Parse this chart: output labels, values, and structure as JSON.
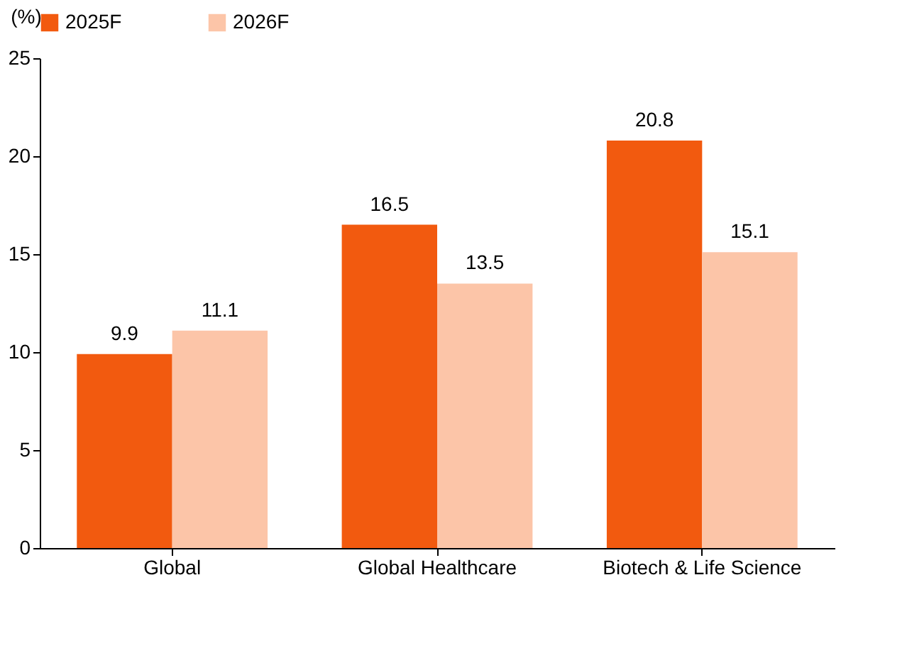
{
  "chart_data": {
    "type": "bar",
    "ylabel": "(%)",
    "categories": [
      "Global",
      "Global  Healthcare",
      "Biotech & Life Science"
    ],
    "series": [
      {
        "name": "2025F",
        "color": "#f25a0f",
        "values": [
          9.9,
          16.5,
          20.8
        ]
      },
      {
        "name": "2026F",
        "color": "#fcc5a8",
        "values": [
          11.1,
          13.5,
          15.1
        ]
      }
    ],
    "ylim": [
      0,
      25
    ],
    "yticks": [
      0,
      5,
      10,
      15,
      20,
      25
    ],
    "grid": false,
    "legend": "top",
    "data_labels": true
  }
}
